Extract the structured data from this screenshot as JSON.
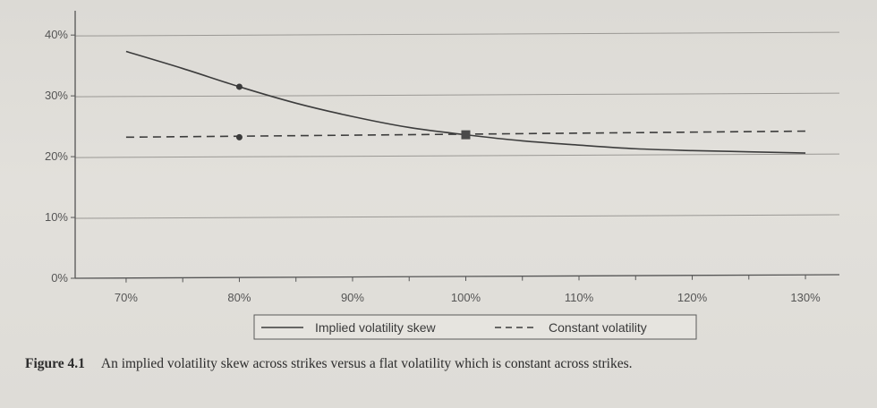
{
  "chart_data": {
    "type": "line",
    "title": "",
    "xlabel": "",
    "ylabel": "",
    "x": [
      70,
      80,
      90,
      100,
      110,
      120,
      130
    ],
    "x_tick_labels": [
      "70%",
      "80%",
      "90%",
      "100%",
      "110%",
      "120%",
      "130%"
    ],
    "y_tick_labels": [
      "0%",
      "10%",
      "20%",
      "30%",
      "40%"
    ],
    "y_ticks": [
      0,
      10,
      20,
      30,
      40
    ],
    "xlim": [
      65.5,
      133
    ],
    "ylim": [
      0,
      44
    ],
    "grid": true,
    "series": [
      {
        "name": "Implied volatility skew",
        "style": "solid",
        "x": [
          70,
          75,
          80,
          85,
          90,
          95,
          100,
          105,
          110,
          115,
          120,
          125,
          130
        ],
        "values": [
          37.3,
          34.5,
          31.5,
          28.8,
          26.6,
          24.8,
          23.6,
          22.6,
          21.9,
          21.3,
          21.0,
          20.8,
          20.6
        ],
        "markers": [
          {
            "x": 80,
            "y": 31.5,
            "shape": "circle"
          }
        ]
      },
      {
        "name": "Constant volatility",
        "style": "dashed",
        "x": [
          70,
          130
        ],
        "values": [
          23.2,
          24.2
        ],
        "markers": [
          {
            "x": 80,
            "y": 23.2,
            "shape": "circle"
          }
        ]
      }
    ],
    "highlight_point": {
      "x": 100,
      "y": 23.6,
      "shape": "square"
    },
    "legend": {
      "position": "bottom-center"
    }
  },
  "caption": {
    "figure_label": "Figure 4.1",
    "text": "An implied volatility skew across strikes versus a flat volatility which is constant across strikes."
  },
  "colors": {
    "line": "#3c3c3c",
    "grid": "#9a9894",
    "axis": "#555555",
    "tick_text": "#555555"
  }
}
